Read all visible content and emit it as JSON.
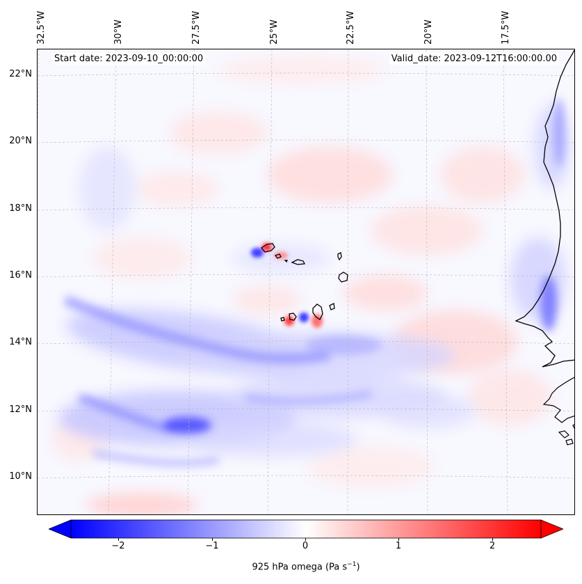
{
  "map": {
    "start_date": "Start date: 2023-09-10_00:00:00",
    "valid_date": "Valid_date: 2023-09-12T16:00:00.00",
    "lon_labels": [
      "32.5°W",
      "30°W",
      "27.5°W",
      "25°W",
      "22.5°W",
      "20°W",
      "17.5°W"
    ],
    "lat_labels": [
      "22°N",
      "20°N",
      "18°N",
      "16°N",
      "14°N",
      "12°N",
      "10°N"
    ],
    "field": "925 hPa vertical velocity (omega)",
    "features": [
      "coastline-west-africa",
      "cape-verde-islands"
    ]
  },
  "colorbar": {
    "ticks": [
      "−2",
      "−1",
      "0",
      "1",
      "2"
    ],
    "label_main": "925 hPa omega (Pa s",
    "label_sup": "−1",
    "label_end": ")",
    "min": -2.75,
    "max": 2.75,
    "colors": {
      "negative": "#0000ff",
      "zero": "#ffffff",
      "positive": "#ff0000"
    }
  }
}
